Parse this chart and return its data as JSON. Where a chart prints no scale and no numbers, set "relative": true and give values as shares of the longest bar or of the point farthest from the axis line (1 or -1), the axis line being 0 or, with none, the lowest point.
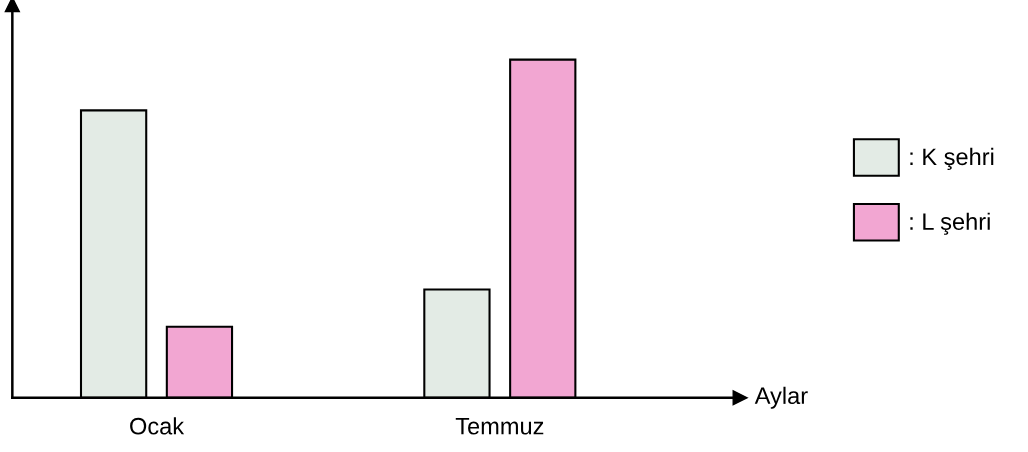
{
  "chart_data": {
    "type": "bar",
    "relative": true,
    "xlabel": "Aylar",
    "categories": [
      "Ocak",
      "Temmuz"
    ],
    "series": [
      {
        "name": ": K şehri",
        "color": "#e3ebe5",
        "values": [
          0.85,
          0.32
        ]
      },
      {
        "name": ": L şehri",
        "color": "#f2a6d2",
        "values": [
          0.21,
          1
        ]
      }
    ],
    "legend": "right",
    "grid": false
  }
}
